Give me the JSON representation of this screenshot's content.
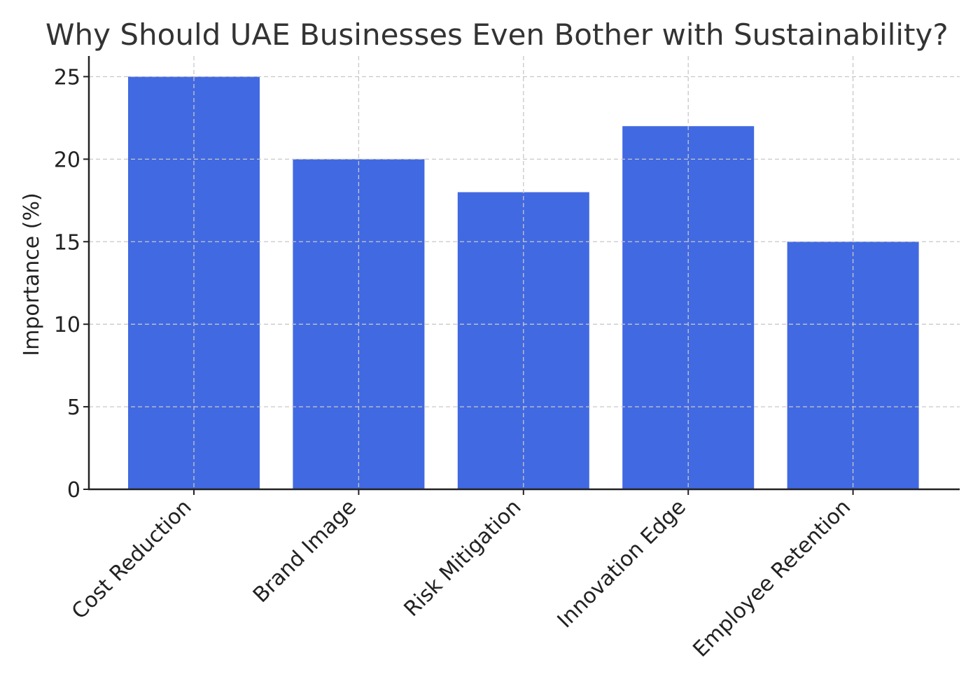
{
  "chart_data": {
    "type": "bar",
    "title": "Why Should UAE Businesses Even Bother with Sustainability?",
    "xlabel": "",
    "ylabel": "Importance (%)",
    "categories": [
      "Cost Reduction",
      "Brand Image",
      "Risk Mitigation",
      "Innovation Edge",
      "Employee Retention"
    ],
    "values": [
      25,
      20,
      18,
      22,
      15
    ],
    "ylim": [
      0,
      26.25
    ],
    "yticks": [
      "0",
      "5",
      "10",
      "15",
      "20",
      "25"
    ],
    "grid": true,
    "bar_color": "#4169e1",
    "legend": "none"
  }
}
